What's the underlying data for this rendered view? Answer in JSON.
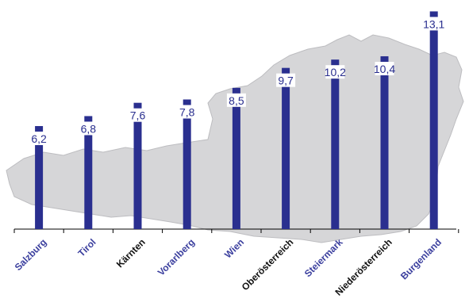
{
  "chart_data": {
    "type": "bar",
    "title": "",
    "xlabel": "",
    "ylabel": "",
    "ylim": [
      0,
      13.5
    ],
    "categories": [
      "Salzburg",
      "Tirol",
      "Kärnten",
      "Vorarlberg",
      "Wien",
      "Oberösterreich",
      "Steiermark",
      "Niederösterreich",
      "Burgenland"
    ],
    "values": [
      6.2,
      6.8,
      7.6,
      7.8,
      8.5,
      9.7,
      10.2,
      10.4,
      13.1
    ],
    "value_labels": [
      "6,2",
      "6,8",
      "7,6",
      "7,8",
      "8,5",
      "9,7",
      "10,2",
      "10,4",
      "13,1"
    ],
    "category_label_colors": [
      "#3b3f9e",
      "#3b3f9e",
      "#111111",
      "#3b3f9e",
      "#3b3f9e",
      "#111111",
      "#3b3f9e",
      "#111111",
      "#3b3f9e"
    ],
    "bar_color": "#2a2f8f",
    "background_map_color": "#d6d6d8",
    "grid": false,
    "legend": "none"
  }
}
